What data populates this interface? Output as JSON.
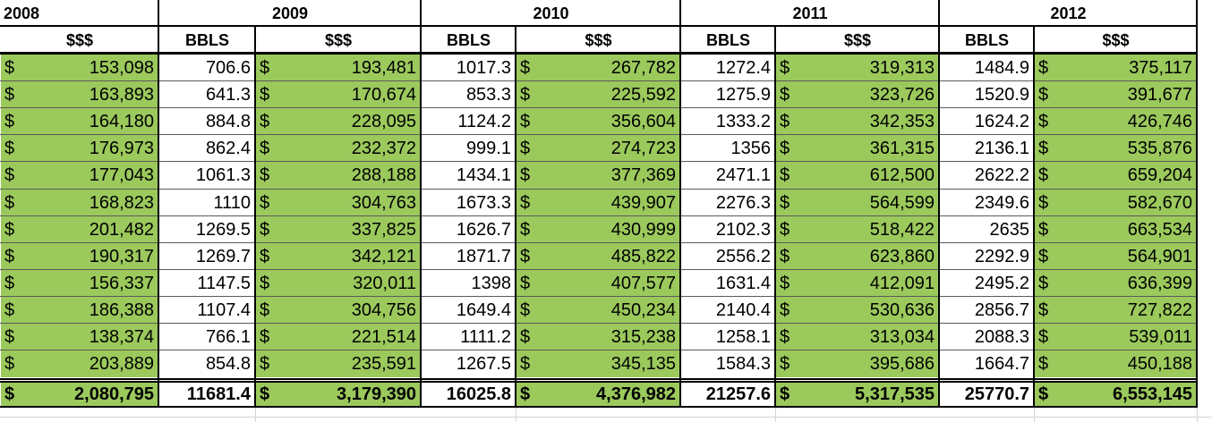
{
  "colors": {
    "money_fill": "#9bc95c",
    "border": "#000000",
    "gridline": "#d4d4d4"
  },
  "currency_symbol": "$",
  "years": [
    "2008",
    "2009",
    "2010",
    "2011",
    "2012"
  ],
  "column_headers": {
    "2008": [
      "$$$"
    ],
    "2009": [
      "BBLS",
      "$$$"
    ],
    "2010": [
      "BBLS",
      "$$$"
    ],
    "2011": [
      "BBLS",
      "$$$"
    ],
    "2012": [
      "BBLS",
      "$$$"
    ]
  },
  "rows": [
    [
      "153,098",
      "706.6",
      "193,481",
      "1017.3",
      "267,782",
      "1272.4",
      "319,313",
      "1484.9",
      "375,117"
    ],
    [
      "163,893",
      "641.3",
      "170,674",
      "853.3",
      "225,592",
      "1275.9",
      "323,726",
      "1520.9",
      "391,677"
    ],
    [
      "164,180",
      "884.8",
      "228,095",
      "1124.2",
      "356,604",
      "1333.2",
      "342,353",
      "1624.2",
      "426,746"
    ],
    [
      "176,973",
      "862.4",
      "232,372",
      "999.1",
      "274,723",
      "1356",
      "361,315",
      "2136.1",
      "535,876"
    ],
    [
      "177,043",
      "1061.3",
      "288,188",
      "1434.1",
      "377,369",
      "2471.1",
      "612,500",
      "2622.2",
      "659,204"
    ],
    [
      "168,823",
      "1110",
      "304,763",
      "1673.3",
      "439,907",
      "2276.3",
      "564,599",
      "2349.6",
      "582,670"
    ],
    [
      "201,482",
      "1269.5",
      "337,825",
      "1626.7",
      "430,999",
      "2102.3",
      "518,422",
      "2635",
      "663,534"
    ],
    [
      "190,317",
      "1269.7",
      "342,121",
      "1871.7",
      "485,822",
      "2556.2",
      "623,860",
      "2292.9",
      "564,901"
    ],
    [
      "156,337",
      "1147.5",
      "320,011",
      "1398",
      "407,577",
      "1631.4",
      "412,091",
      "2495.2",
      "636,399"
    ],
    [
      "186,388",
      "1107.4",
      "304,756",
      "1649.4",
      "450,234",
      "2140.4",
      "530,636",
      "2856.7",
      "727,822"
    ],
    [
      "138,374",
      "766.1",
      "221,514",
      "1111.2",
      "315,238",
      "1258.1",
      "313,034",
      "2088.3",
      "539,011"
    ],
    [
      "203,889",
      "854.8",
      "235,591",
      "1267.5",
      "345,135",
      "1584.3",
      "395,686",
      "1664.7",
      "450,188"
    ]
  ],
  "totals": [
    "2,080,795",
    "11681.4",
    "3,179,390",
    "16025.8",
    "4,376,982",
    "21257.6",
    "5,317,535",
    "25770.7",
    "6,553,145"
  ]
}
